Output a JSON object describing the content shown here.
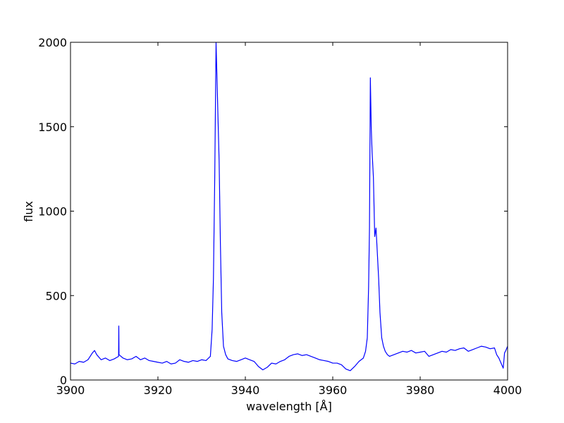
{
  "chart_data": {
    "type": "line",
    "title": "",
    "xlabel": "wavelength [Å]",
    "ylabel": "flux",
    "xlim": [
      3900,
      4000
    ],
    "ylim": [
      0,
      2000
    ],
    "xticks": [
      3900,
      3920,
      3940,
      3960,
      3980,
      4000
    ],
    "yticks": [
      0,
      500,
      1000,
      1500,
      2000
    ],
    "grid": false,
    "legend": "none",
    "series": [
      {
        "color": "#0000ff",
        "x": [
          3900,
          3901,
          3902,
          3903,
          3904,
          3905,
          3905.5,
          3906,
          3907,
          3908,
          3909,
          3910,
          3911,
          3911.05,
          3911.1,
          3912,
          3913,
          3914,
          3915,
          3916,
          3917,
          3918,
          3919,
          3920,
          3921,
          3922,
          3923,
          3924,
          3925,
          3926,
          3927,
          3928,
          3929,
          3930,
          3931,
          3932,
          3932.4,
          3932.7,
          3933.0,
          3933.3,
          3933.6,
          3933.8,
          3934.0,
          3934.3,
          3934.6,
          3935.0,
          3935.5,
          3936,
          3937,
          3938,
          3939,
          3940,
          3941,
          3942,
          3943,
          3944,
          3945,
          3946,
          3947,
          3948,
          3949,
          3950,
          3951,
          3952,
          3953,
          3954,
          3955,
          3956,
          3957,
          3958,
          3959,
          3960,
          3961,
          3962,
          3963,
          3964,
          3965,
          3966,
          3967,
          3967.5,
          3967.9,
          3968.2,
          3968.4,
          3968.6,
          3968.8,
          3969.0,
          3969.3,
          3969.6,
          3969.9,
          3970.2,
          3970.5,
          3970.8,
          3971.2,
          3971.6,
          3972,
          3972.5,
          3973,
          3974,
          3975,
          3976,
          3977,
          3978,
          3979,
          3980,
          3981,
          3982,
          3983,
          3984,
          3985,
          3986,
          3987,
          3988,
          3989,
          3990,
          3991,
          3992,
          3993,
          3994,
          3995,
          3996,
          3997,
          3997.5,
          3998,
          3999,
          3999.3,
          3999.6,
          4000
        ],
        "values": [
          100,
          95,
          110,
          105,
          120,
          160,
          175,
          150,
          120,
          130,
          115,
          125,
          140,
          320,
          150,
          130,
          120,
          125,
          140,
          120,
          130,
          115,
          110,
          105,
          100,
          110,
          95,
          100,
          120,
          110,
          105,
          115,
          110,
          120,
          115,
          140,
          300,
          600,
          1200,
          2000,
          1700,
          1500,
          1300,
          800,
          400,
          200,
          150,
          125,
          115,
          110,
          120,
          130,
          120,
          110,
          80,
          60,
          75,
          100,
          95,
          110,
          120,
          140,
          150,
          155,
          145,
          150,
          140,
          130,
          120,
          115,
          110,
          100,
          100,
          90,
          65,
          55,
          80,
          110,
          130,
          170,
          250,
          550,
          900,
          1790,
          1500,
          1350,
          1200,
          850,
          900,
          750,
          600,
          400,
          250,
          200,
          170,
          150,
          140,
          150,
          160,
          170,
          165,
          175,
          160,
          165,
          170,
          140,
          150,
          160,
          170,
          165,
          180,
          175,
          185,
          190,
          170,
          180,
          190,
          200,
          195,
          185,
          190,
          150,
          130,
          70,
          160,
          175,
          200
        ]
      }
    ]
  }
}
